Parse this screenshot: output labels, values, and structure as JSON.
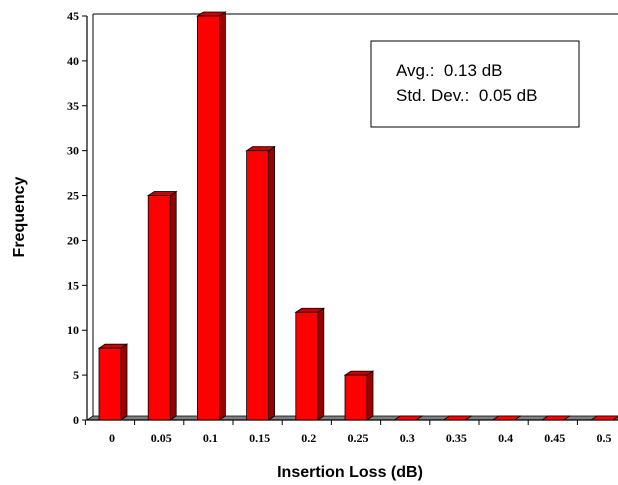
{
  "chart_data": {
    "type": "bar",
    "categories": [
      "0",
      "0.05",
      "0.1",
      "0.15",
      "0.2",
      "0.25",
      "0.3",
      "0.35",
      "0.4",
      "0.45",
      "0.5"
    ],
    "values": [
      8,
      25,
      45,
      30,
      12,
      5,
      0,
      0,
      0,
      0,
      0
    ],
    "xlabel": "Insertion Loss (dB)",
    "ylabel": "Frequency",
    "ylim": [
      0,
      45
    ],
    "yticks": [
      "0",
      "5",
      "10",
      "15",
      "20",
      "25",
      "30",
      "35",
      "40",
      "45"
    ],
    "grid": false,
    "legend": "none",
    "style": "3d-bar",
    "colors": {
      "bar_front": "#ff0000",
      "bar_side": "#990000",
      "bar_top": "#cc0000",
      "floor": "#808080"
    },
    "annotations": {
      "avg_line": "Avg.:  0.13 dB",
      "std_line": "Std. Dev.:  0.05 dB"
    }
  }
}
